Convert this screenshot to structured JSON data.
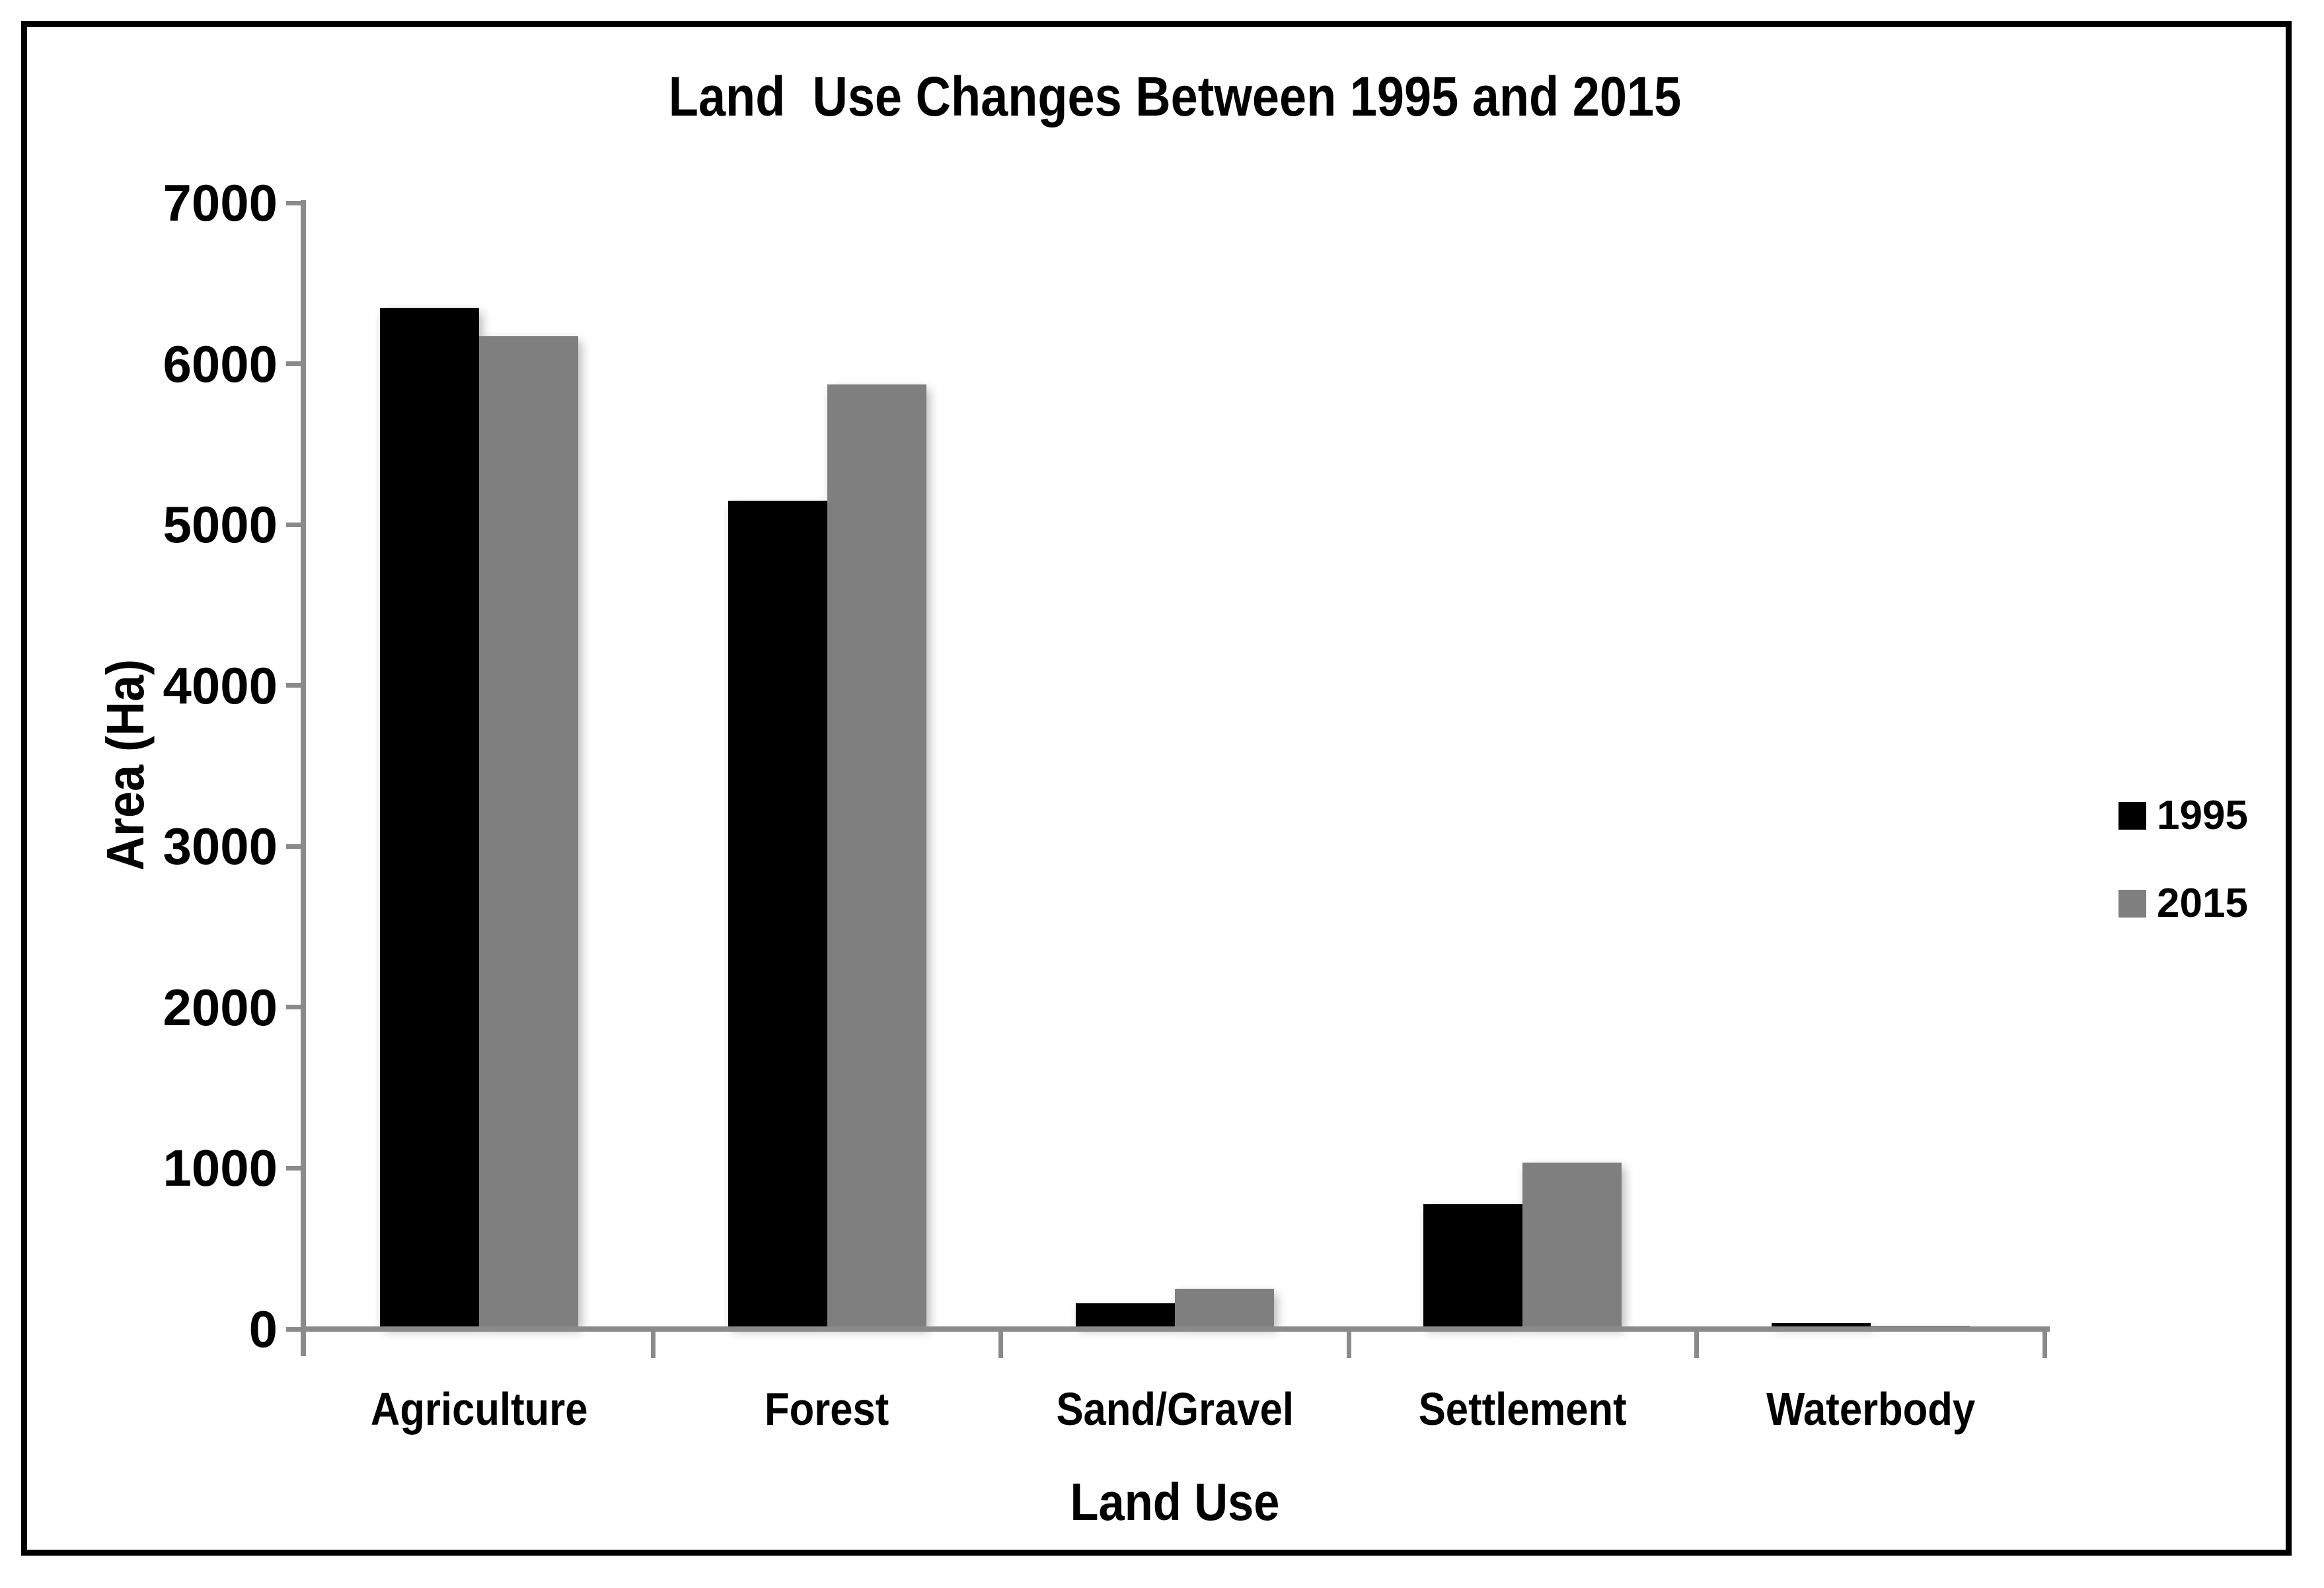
{
  "chart_data": {
    "type": "bar",
    "title": "Land  Use Changes Between 1995 and 2015",
    "categories": [
      "Agriculture",
      "Forest",
      "Sand/Gravel",
      "Settlement",
      "Waterbody"
    ],
    "series": [
      {
        "name": "1995",
        "color": "#000000",
        "values": [
          6330,
          5130,
          145,
          760,
          20
        ]
      },
      {
        "name": "2015",
        "color": "#7F7F7F",
        "values": [
          6155,
          5855,
          235,
          1020,
          5
        ]
      }
    ],
    "xlabel": "Land Use",
    "ylabel": "Area (Ha)",
    "ylim": [
      0,
      7000
    ],
    "yticks": [
      0,
      1000,
      2000,
      3000,
      4000,
      5000,
      6000,
      7000
    ],
    "grid": false,
    "legend_position": "right",
    "legend_labels": [
      "1995",
      "2015"
    ],
    "colors": {
      "bar_1995": "#000000",
      "bar_2015": "#7F7F7F",
      "axis": "#8A8A8A",
      "text": "#000000",
      "background": "#FFFFFF",
      "border": "#000000"
    }
  }
}
